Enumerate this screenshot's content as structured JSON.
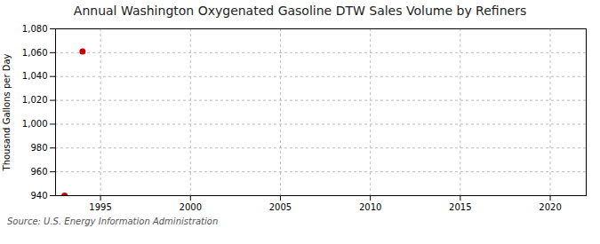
{
  "chart_data": {
    "type": "scatter",
    "title": "Annual Washington Oxygenated Gasoline DTW Sales Volume by Refiners",
    "ylabel": "Thousand Gallons per Day",
    "annotation": "Source: U.S. Energy Information Administration",
    "x": [
      1993,
      1994
    ],
    "values": [
      940,
      1061
    ],
    "color": "#cc0000",
    "marker": "circle",
    "xlim": [
      1992.5,
      2022
    ],
    "ylim": [
      940,
      1080
    ],
    "xticks": [
      1995,
      2000,
      2005,
      2010,
      2015,
      2020
    ],
    "yticks": [
      940,
      960,
      980,
      {
        "value": 1000,
        "label": "1,000"
      },
      {
        "value": 1020,
        "label": "1,020"
      },
      {
        "value": 1040,
        "label": "1,040"
      },
      {
        "value": 1060,
        "label": "1,060"
      },
      {
        "value": 1080,
        "label": "1,080"
      }
    ],
    "grid": true
  }
}
